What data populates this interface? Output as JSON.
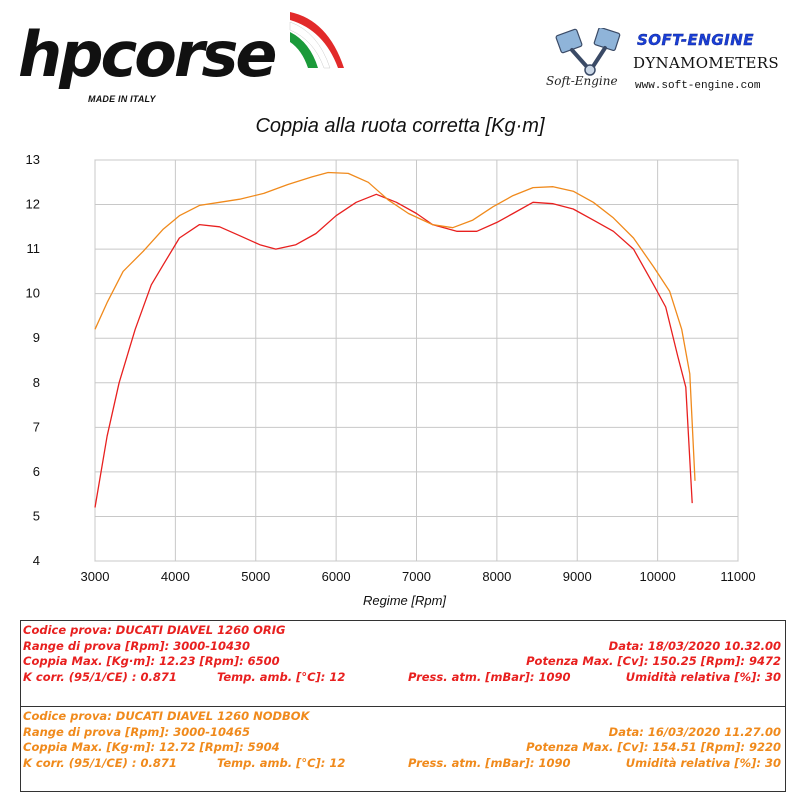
{
  "header": {
    "hp_logo_text": "hpcorse",
    "hp_logo_sub": "MADE IN ITALY",
    "se_logo_title": "SOFT-ENGINE",
    "se_logo_dyno": "DYNAMOMETERS",
    "se_logo_brand": "Soft-Engine",
    "se_logo_url": "www.soft-engine.com"
  },
  "chart_data": {
    "type": "line",
    "title": "Coppia alla ruota corretta [Kg·m]",
    "xlabel": "Regime [Rpm]",
    "ylabel": "",
    "xlim": [
      3000,
      11000
    ],
    "ylim": [
      4,
      13
    ],
    "xticks": [
      3000,
      4000,
      5000,
      6000,
      7000,
      8000,
      9000,
      10000,
      11000
    ],
    "yticks": [
      4,
      5,
      6,
      7,
      8,
      9,
      10,
      11,
      12,
      13
    ],
    "grid": true,
    "series": [
      {
        "name": "DUCATI DIAVEL 1260 ORIG",
        "color": "#e8201f",
        "x": [
          3000,
          3150,
          3300,
          3500,
          3700,
          3850,
          4050,
          4300,
          4550,
          4800,
          5050,
          5250,
          5500,
          5750,
          6000,
          6250,
          6500,
          6750,
          7000,
          7200,
          7500,
          7750,
          8000,
          8200,
          8450,
          8700,
          8950,
          9200,
          9450,
          9700,
          9950,
          10100,
          10250,
          10350,
          10430
        ],
        "values": [
          5.2,
          6.8,
          8.0,
          9.2,
          10.2,
          10.65,
          11.25,
          11.55,
          11.5,
          11.3,
          11.1,
          11.0,
          11.1,
          11.35,
          11.75,
          12.05,
          12.23,
          12.05,
          11.8,
          11.55,
          11.4,
          11.4,
          11.6,
          11.8,
          12.05,
          12.02,
          11.9,
          11.65,
          11.4,
          11.0,
          10.2,
          9.7,
          8.6,
          7.9,
          5.3
        ]
      },
      {
        "name": "DUCATI DIAVEL 1260 NODBOK",
        "color": "#f08a1c",
        "x": [
          3000,
          3150,
          3350,
          3600,
          3850,
          4050,
          4300,
          4550,
          4800,
          5100,
          5400,
          5700,
          5900,
          6150,
          6400,
          6650,
          6900,
          7200,
          7450,
          7700,
          7950,
          8200,
          8450,
          8700,
          8950,
          9200,
          9450,
          9700,
          9950,
          10150,
          10300,
          10400,
          10465
        ],
        "values": [
          9.2,
          9.8,
          10.5,
          10.95,
          11.45,
          11.75,
          11.98,
          12.05,
          12.12,
          12.25,
          12.45,
          12.62,
          12.72,
          12.7,
          12.5,
          12.1,
          11.8,
          11.55,
          11.48,
          11.65,
          11.95,
          12.2,
          12.38,
          12.4,
          12.3,
          12.05,
          11.7,
          11.25,
          10.6,
          10.05,
          9.2,
          8.2,
          5.8
        ]
      }
    ]
  },
  "tests": [
    {
      "color": "#e8201f",
      "code": "Codice prova: DUCATI DIAVEL 1260 ORIG",
      "range": "Range di prova [Rpm]: 3000-10430",
      "date": "Data: 18/03/2020   10.32.00",
      "torque": "Coppia Max. [Kg·m]: 12.23   [Rpm]: 6500",
      "power": "Potenza Max. [Cv]: 150.25   [Rpm]: 9472",
      "kcorr": "K corr. (95/1/CE) : 0.871",
      "temp": "Temp. amb. [°C]: 12",
      "press": "Press. atm. [mBar]: 1090",
      "humidity": "Umidità relativa [%]: 30"
    },
    {
      "color": "#f08a1c",
      "code": "Codice prova: DUCATI DIAVEL 1260 NODBOK",
      "range": "Range di prova [Rpm]: 3000-10465",
      "date": "Data: 16/03/2020   11.27.00",
      "torque": "Coppia Max. [Kg·m]: 12.72   [Rpm]: 5904",
      "power": "Potenza Max. [Cv]: 154.51   [Rpm]: 9220",
      "kcorr": "K corr. (95/1/CE) : 0.871",
      "temp": "Temp. amb. [°C]: 12",
      "press": "Press. atm. [mBar]: 1090",
      "humidity": "Umidità relativa [%]: 30"
    }
  ]
}
